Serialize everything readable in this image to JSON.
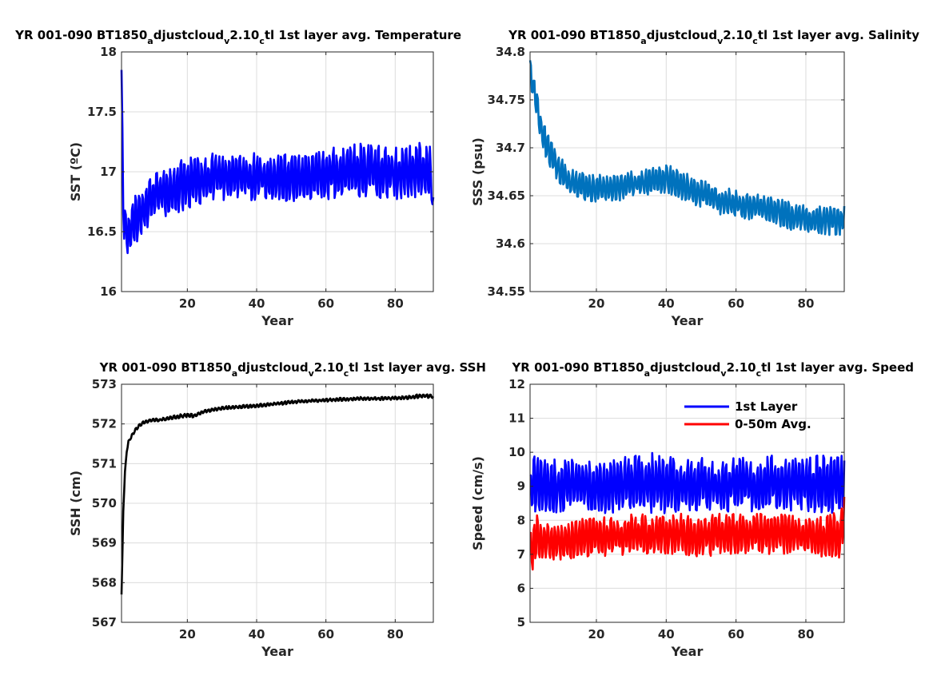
{
  "chart_data": [
    {
      "type": "line",
      "id": "sst",
      "title": "YR 001-090 BT1850_adjustcloud_v2.10_ctl 1st layer avg. Temperature",
      "title_parts": [
        {
          "t": "YR 001-090 BT1850"
        },
        {
          "t": "a",
          "sub": true
        },
        {
          "t": "djustcloud"
        },
        {
          "t": "v",
          "sub": true
        },
        {
          "t": "2.10"
        },
        {
          "t": "c",
          "sub": true
        },
        {
          "t": "tl 1st layer avg. Temperature"
        }
      ],
      "xlabel": "Year",
      "ylabel": "SST (ºC)",
      "xlim": [
        1,
        91
      ],
      "ylim": [
        16,
        18
      ],
      "xticks": [
        20,
        40,
        60,
        80
      ],
      "xtick_labels": [
        "20",
        "40",
        "60",
        "80"
      ],
      "yticks": [
        16,
        16.5,
        17,
        17.5,
        18
      ],
      "ytick_labels": [
        "16",
        "16.5",
        "17",
        "17.5",
        "18"
      ],
      "grid": true,
      "series": [
        {
          "color": "#0000ff",
          "x": [
            1,
            1.5,
            2,
            2.5,
            3,
            4,
            5,
            6,
            8,
            10,
            12,
            15,
            20,
            25,
            30,
            35,
            40,
            45,
            50,
            55,
            60,
            65,
            70,
            75,
            80,
            85,
            88,
            90,
            91
          ],
          "y": [
            17.85,
            16.75,
            16.45,
            16.55,
            16.5,
            16.55,
            16.6,
            16.65,
            16.72,
            16.78,
            16.83,
            16.86,
            16.9,
            16.94,
            16.96,
            16.95,
            16.96,
            16.95,
            16.95,
            16.94,
            16.98,
            16.99,
            17.0,
            17.0,
            16.99,
            17.0,
            17.02,
            17.0,
            16.75
          ],
          "amplitude": [
            0,
            0.15,
            0.25,
            0.25,
            0.22,
            0.2,
            0.22,
            0.2,
            0.2,
            0.22,
            0.22,
            0.22,
            0.22,
            0.2,
            0.22,
            0.2,
            0.2,
            0.2,
            0.2,
            0.2,
            0.22,
            0.22,
            0.24,
            0.22,
            0.22,
            0.22,
            0.24,
            0.24,
            0.05
          ]
        }
      ]
    },
    {
      "type": "line",
      "id": "sss",
      "title": "YR 001-090 BT1850_adjustcloud_v2.10_ctl 1st layer avg. Salinity",
      "title_parts": [
        {
          "t": "YR 001-090 BT1850"
        },
        {
          "t": "a",
          "sub": true
        },
        {
          "t": "djustcloud"
        },
        {
          "t": "v",
          "sub": true
        },
        {
          "t": "2.10"
        },
        {
          "t": "c",
          "sub": true
        },
        {
          "t": "tl 1st layer avg. Salinity"
        }
      ],
      "xlabel": "Year",
      "ylabel": "SSS (psu)",
      "xlim": [
        1,
        91
      ],
      "ylim": [
        34.55,
        34.8
      ],
      "xticks": [
        20,
        40,
        60,
        80
      ],
      "xtick_labels": [
        "20",
        "40",
        "60",
        "80"
      ],
      "yticks": [
        34.55,
        34.6,
        34.65,
        34.7,
        34.75,
        34.8
      ],
      "ytick_labels": [
        "34.55",
        "34.6",
        "34.65",
        "34.7",
        "34.75",
        "34.8"
      ],
      "grid": true,
      "series": [
        {
          "color": "#0072bd",
          "x": [
            1,
            1.5,
            2,
            3,
            4,
            5,
            6,
            8,
            10,
            12,
            15,
            20,
            25,
            30,
            35,
            40,
            45,
            50,
            55,
            60,
            65,
            70,
            75,
            80,
            85,
            88,
            91
          ],
          "y": [
            34.785,
            34.77,
            34.76,
            34.745,
            34.725,
            34.71,
            34.7,
            34.685,
            34.675,
            34.665,
            34.66,
            34.658,
            34.658,
            34.662,
            34.665,
            34.668,
            34.66,
            34.652,
            34.645,
            34.642,
            34.638,
            34.635,
            34.63,
            34.625,
            34.625,
            34.625,
            34.625
          ],
          "amplitude": [
            0.008,
            0.012,
            0.015,
            0.015,
            0.015,
            0.015,
            0.015,
            0.015,
            0.015,
            0.014,
            0.015,
            0.015,
            0.015,
            0.014,
            0.015,
            0.015,
            0.015,
            0.015,
            0.015,
            0.014,
            0.014,
            0.014,
            0.015,
            0.015,
            0.016,
            0.016,
            0.016
          ]
        }
      ]
    },
    {
      "type": "line",
      "id": "ssh",
      "title": "YR 001-090 BT1850_adjustcloud_v2.10_ctl 1st layer avg. SSH",
      "title_parts": [
        {
          "t": "YR 001-090 BT1850"
        },
        {
          "t": "a",
          "sub": true
        },
        {
          "t": "djustcloud"
        },
        {
          "t": "v",
          "sub": true
        },
        {
          "t": "2.10"
        },
        {
          "t": "c",
          "sub": true
        },
        {
          "t": "tl 1st layer avg. SSH"
        }
      ],
      "xlabel": "Year",
      "ylabel": "SSH (cm)",
      "xlim": [
        1,
        91
      ],
      "ylim": [
        567,
        573
      ],
      "xticks": [
        20,
        40,
        60,
        80
      ],
      "xtick_labels": [
        "20",
        "40",
        "60",
        "80"
      ],
      "yticks": [
        567,
        568,
        569,
        570,
        571,
        572,
        573
      ],
      "ytick_labels": [
        "567",
        "568",
        "569",
        "570",
        "571",
        "572",
        "573"
      ],
      "grid": true,
      "series": [
        {
          "color": "#000000",
          "x": [
            1,
            1.2,
            1.5,
            2,
            2.5,
            3,
            4,
            5,
            6,
            7,
            8,
            10,
            12,
            15,
            18,
            20,
            22,
            25,
            30,
            35,
            40,
            45,
            50,
            55,
            60,
            65,
            70,
            75,
            80,
            85,
            88,
            90,
            91
          ],
          "y": [
            567.7,
            568.5,
            569.8,
            570.8,
            571.3,
            571.55,
            571.7,
            571.85,
            571.95,
            572.02,
            572.06,
            572.1,
            572.1,
            572.15,
            572.2,
            572.22,
            572.2,
            572.32,
            572.4,
            572.43,
            572.46,
            572.5,
            572.55,
            572.58,
            572.6,
            572.62,
            572.64,
            572.64,
            572.65,
            572.68,
            572.72,
            572.7,
            572.68
          ],
          "amplitude": [
            0,
            0,
            0,
            0,
            0.02,
            0.03,
            0.04,
            0.04,
            0.04,
            0.04,
            0.04,
            0.04,
            0.04,
            0.04,
            0.05,
            0.05,
            0.05,
            0.04,
            0.04,
            0.04,
            0.04,
            0.04,
            0.04,
            0.04,
            0.04,
            0.04,
            0.04,
            0.04,
            0.04,
            0.05,
            0.05,
            0.05,
            0.04
          ]
        }
      ]
    },
    {
      "type": "line",
      "id": "speed",
      "title": "YR 001-090 BT1850_adjustcloud_v2.10_ctl 1st layer avg. Speed",
      "title_parts": [
        {
          "t": "YR 001-090 BT1850"
        },
        {
          "t": "a",
          "sub": true
        },
        {
          "t": "djustcloud"
        },
        {
          "t": "v",
          "sub": true
        },
        {
          "t": "2.10"
        },
        {
          "t": "c",
          "sub": true
        },
        {
          "t": "tl 1st layer avg. Speed"
        }
      ],
      "xlabel": "Year",
      "ylabel": "Speed (cm/s)",
      "xlim": [
        1,
        91
      ],
      "ylim": [
        5,
        12
      ],
      "xticks": [
        20,
        40,
        60,
        80
      ],
      "xtick_labels": [
        "20",
        "40",
        "60",
        "80"
      ],
      "yticks": [
        5,
        6,
        7,
        8,
        9,
        10,
        11,
        12
      ],
      "ytick_labels": [
        "5",
        "6",
        "7",
        "8",
        "9",
        "10",
        "11",
        "12"
      ],
      "grid": true,
      "legend_position": "top-right",
      "series": [
        {
          "name": "1st Layer",
          "color": "#0000ff",
          "x": [
            1,
            2,
            3,
            5,
            10,
            15,
            20,
            25,
            30,
            35,
            40,
            45,
            50,
            55,
            60,
            65,
            70,
            75,
            80,
            85,
            90,
            91
          ],
          "y": [
            9.0,
            9.0,
            9.1,
            9.0,
            9.0,
            9.1,
            9.0,
            9.0,
            9.1,
            9.1,
            9.1,
            9.0,
            9.1,
            9.0,
            9.1,
            9.0,
            9.1,
            9.1,
            9.0,
            9.1,
            9.1,
            9.3
          ],
          "amplitude": [
            0.4,
            0.9,
            0.9,
            0.8,
            0.8,
            0.8,
            0.8,
            0.8,
            0.8,
            0.9,
            0.9,
            0.8,
            0.8,
            0.8,
            0.8,
            0.8,
            0.8,
            0.8,
            0.8,
            0.9,
            0.9,
            0.9
          ]
        },
        {
          "name": "0-50m Avg.",
          "color": "#ff0000",
          "x": [
            1,
            2,
            3,
            5,
            10,
            15,
            20,
            25,
            30,
            35,
            40,
            45,
            50,
            55,
            60,
            65,
            70,
            75,
            80,
            85,
            90,
            91
          ],
          "y": [
            7.3,
            7.2,
            7.5,
            7.4,
            7.4,
            7.5,
            7.5,
            7.5,
            7.6,
            7.6,
            7.6,
            7.6,
            7.5,
            7.6,
            7.6,
            7.6,
            7.6,
            7.6,
            7.6,
            7.5,
            7.6,
            8.4
          ],
          "amplitude": [
            0.4,
            0.8,
            0.7,
            0.6,
            0.6,
            0.6,
            0.6,
            0.6,
            0.6,
            0.6,
            0.6,
            0.6,
            0.6,
            0.6,
            0.6,
            0.6,
            0.6,
            0.6,
            0.6,
            0.6,
            0.7,
            0.8
          ]
        }
      ]
    }
  ]
}
